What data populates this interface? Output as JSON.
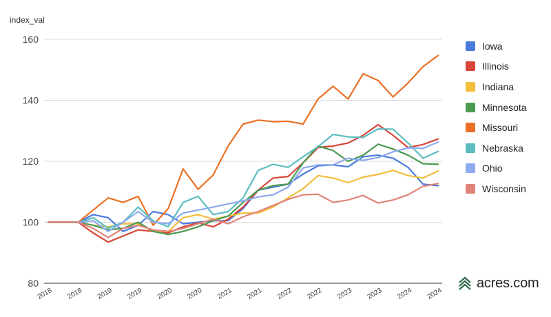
{
  "chart_data": {
    "type": "line",
    "title": "",
    "ylabel": "index_val",
    "xlabel": "",
    "ylim": [
      80,
      160
    ],
    "yticks": [
      80,
      100,
      120,
      140,
      160
    ],
    "grid": true,
    "legend_position": "right",
    "x_tick_labels": [
      "2018",
      "2018",
      "2019",
      "2019",
      "2020",
      "2020",
      "2021",
      "2021",
      "2022",
      "2022",
      "2023",
      "2023",
      "2024",
      "2024"
    ],
    "series": [
      {
        "name": "Iowa",
        "color": "#4a7bdc",
        "values": [
          100,
          100,
          100,
          102.5,
          101.5,
          97,
          99,
          103.5,
          102.5,
          99.5,
          100,
          100.5,
          100.5,
          104.5,
          110.5,
          111.5,
          112.5,
          115.8,
          118.5,
          118.8,
          118.2,
          121.5,
          122,
          121,
          118,
          112.5,
          112
        ]
      },
      {
        "name": "Illinois",
        "color": "#d9453a",
        "values": [
          100,
          100,
          100,
          96.5,
          93.5,
          95.5,
          97.5,
          97,
          96.5,
          98.5,
          99.8,
          98.5,
          101,
          105,
          110.5,
          114.5,
          115,
          119.5,
          124.5,
          125,
          126,
          128.5,
          132,
          128.5,
          124.5,
          125.5,
          127.3
        ]
      },
      {
        "name": "Indiana",
        "color": "#f2be3b",
        "values": [
          100,
          100,
          100,
          99,
          98.5,
          99.5,
          99.5,
          97,
          97,
          101.5,
          102.5,
          101,
          102,
          103,
          103,
          105,
          108,
          111,
          115.3,
          114.5,
          113,
          114.8,
          115.7,
          117,
          115.3,
          114.5,
          116.8
        ]
      },
      {
        "name": "Minnesota",
        "color": "#4a9b4f",
        "values": [
          100,
          100,
          100,
          99,
          97.5,
          98,
          100,
          97,
          96,
          97,
          98.5,
          100.5,
          102,
          106.5,
          110.5,
          112,
          112.5,
          119.5,
          125,
          123.5,
          120,
          122,
          125.6,
          124,
          122,
          119.2,
          119
        ]
      },
      {
        "name": "Missouri",
        "color": "#ea7025",
        "values": [
          100,
          100,
          100,
          104,
          108,
          106.5,
          108.5,
          99,
          104.5,
          117.5,
          110.8,
          115.5,
          125,
          132.2,
          133.5,
          133,
          133.1,
          132.2,
          140.4,
          144.6,
          140.4,
          148.7,
          146.5,
          141.1,
          145.7,
          151,
          154.7
        ]
      },
      {
        "name": "Nebraska",
        "color": "#5bbcbf",
        "values": [
          100,
          100,
          100,
          101.5,
          98,
          100,
          105,
          100.5,
          98.5,
          106.5,
          108.5,
          102.5,
          103.5,
          108,
          117,
          119,
          118,
          121.5,
          124.8,
          128.8,
          128,
          127.8,
          130.6,
          130.5,
          126,
          121,
          123.2
        ]
      },
      {
        "name": "Ohio",
        "color": "#8caaf0",
        "values": [
          100,
          100,
          100,
          100.5,
          97,
          100,
          103.5,
          100,
          99.5,
          103,
          104,
          105,
          106,
          107,
          108.3,
          109,
          111.5,
          117.8,
          118.8,
          118.8,
          121,
          120.3,
          121.2,
          123.1,
          124.4,
          124.2,
          126.3
        ]
      },
      {
        "name": "Wisconsin",
        "color": "#e08379",
        "values": [
          100,
          100,
          100,
          98,
          95,
          98,
          99,
          97.5,
          97,
          98,
          99.5,
          101,
          99.5,
          101.8,
          103.5,
          105.5,
          107.5,
          109,
          109.2,
          106.5,
          107.3,
          108.8,
          106.3,
          107.3,
          109,
          111.8,
          112.7
        ]
      }
    ]
  },
  "legend_items": [
    "Iowa",
    "Illinois",
    "Indiana",
    "Minnesota",
    "Missouri",
    "Nebraska",
    "Ohio",
    "Wisconsin"
  ],
  "logo": {
    "text": "acres.com",
    "icon": "acres-logo-icon"
  }
}
